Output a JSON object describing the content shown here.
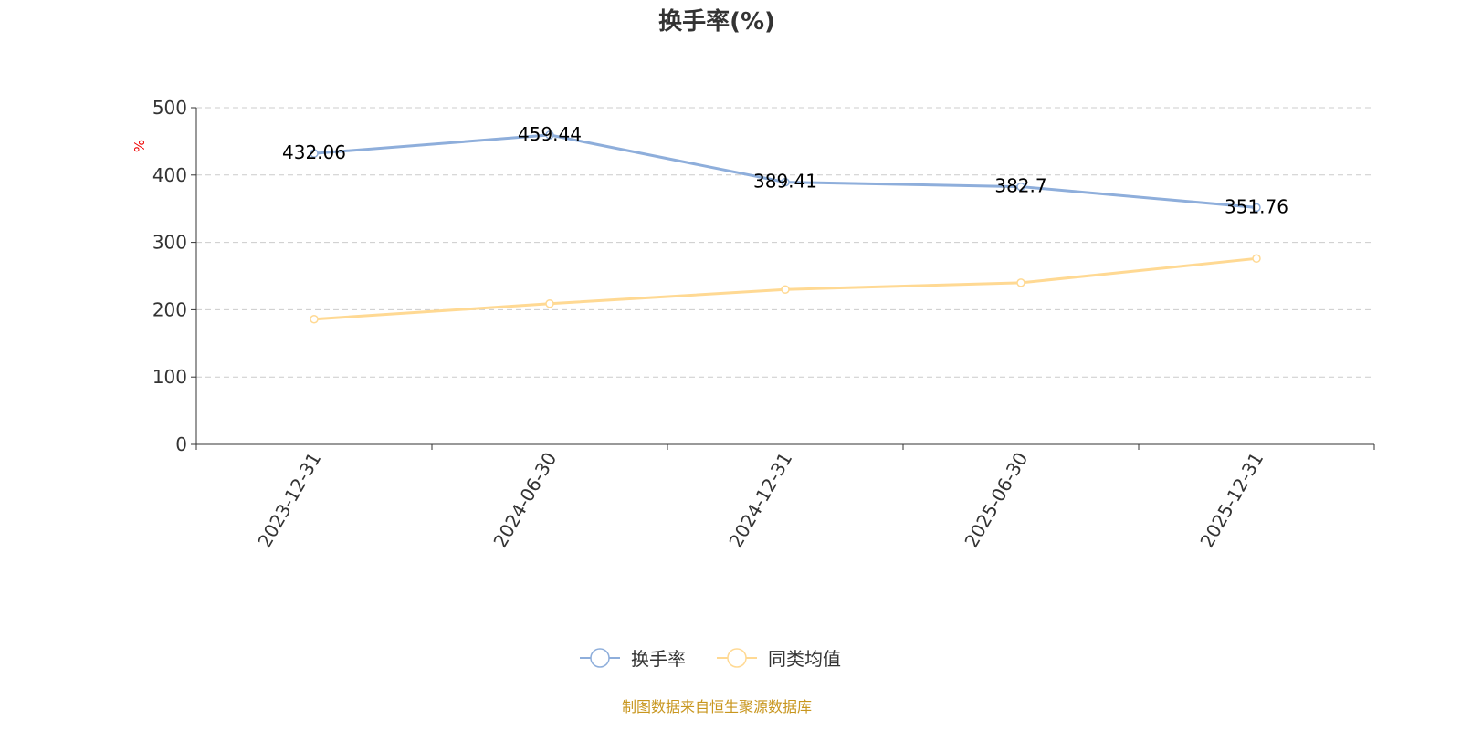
{
  "chart_data": {
    "type": "line",
    "title": "换手率(%)",
    "ylabel": "%",
    "xlabel": "",
    "ylim": [
      0,
      500
    ],
    "yticks": [
      "0",
      "100",
      "200",
      "300",
      "400",
      "500"
    ],
    "categories": [
      "2023-12-31",
      "2024-06-30",
      "2024-12-31",
      "2025-06-30",
      "2025-12-31"
    ],
    "grid": true,
    "legend_position": "bottom",
    "series": [
      {
        "name": "换手率",
        "values": [
          432.06,
          459.44,
          389.41,
          382.7,
          351.76
        ],
        "labels": [
          "432.06",
          "459.44",
          "389.41",
          "382.7",
          "351.76"
        ],
        "color": "#8eaedb"
      },
      {
        "name": "同类均值",
        "values": [
          186,
          209,
          230,
          240,
          276
        ],
        "color": "#ffd993"
      }
    ],
    "source": "制图数据来自恒生聚源数据库"
  }
}
